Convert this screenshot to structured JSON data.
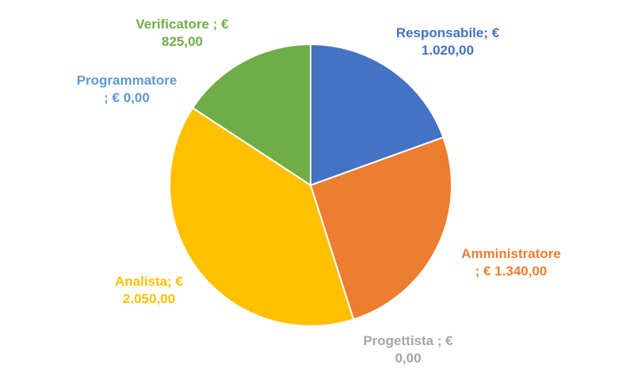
{
  "chart_data": {
    "type": "pie",
    "title": "",
    "legend": "none",
    "slices": [
      {
        "name": "Responsabile",
        "value": 1020,
        "color": "#4472C4",
        "label_line1": "Responsabile; €",
        "label_line2": "1.020,00"
      },
      {
        "name": "Amministratore",
        "value": 1340,
        "color": "#ED7D31",
        "label_line1": "Amministratore",
        "label_line2": "; € 1.340,00"
      },
      {
        "name": "Progettista",
        "value": 0,
        "color": "#A5A5A5",
        "label_line1": "Progettista ; €",
        "label_line2": "0,00"
      },
      {
        "name": "Analista",
        "value": 2050,
        "color": "#FFC000",
        "label_line1": "Analista; €",
        "label_line2": "2.050,00"
      },
      {
        "name": "Programmatore",
        "value": 0,
        "color": "#5B9BD5",
        "label_line1": "Programmatore",
        "label_line2": "; € 0,00"
      },
      {
        "name": "Verificatore",
        "value": 825,
        "color": "#70AD47",
        "label_line1": "Verificatore ; €",
        "label_line2": "825,00"
      }
    ]
  }
}
